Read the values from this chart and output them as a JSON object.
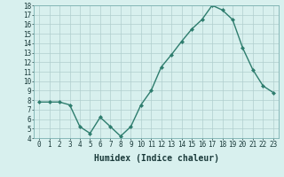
{
  "x": [
    0,
    1,
    2,
    3,
    4,
    5,
    6,
    7,
    8,
    9,
    10,
    11,
    12,
    13,
    14,
    15,
    16,
    17,
    18,
    19,
    20,
    21,
    22,
    23
  ],
  "y": [
    7.8,
    7.8,
    7.8,
    7.5,
    5.2,
    4.5,
    6.2,
    5.2,
    4.2,
    5.2,
    7.5,
    9.0,
    11.5,
    12.8,
    14.2,
    15.5,
    16.5,
    18.0,
    17.5,
    16.5,
    13.5,
    11.2,
    9.5,
    8.8
  ],
  "line_color": "#2e7d6e",
  "marker": "D",
  "marker_size": 2,
  "bg_color": "#d8f0ee",
  "grid_color": "#b0cece",
  "xlabel": "Humidex (Indice chaleur)",
  "xlim": [
    -0.5,
    23.5
  ],
  "ylim": [
    4,
    18
  ],
  "yticks": [
    4,
    5,
    6,
    7,
    8,
    9,
    10,
    11,
    12,
    13,
    14,
    15,
    16,
    17,
    18
  ],
  "xticks": [
    0,
    1,
    2,
    3,
    4,
    5,
    6,
    7,
    8,
    9,
    10,
    11,
    12,
    13,
    14,
    15,
    16,
    17,
    18,
    19,
    20,
    21,
    22,
    23
  ],
  "tick_label_fontsize": 5.5,
  "xlabel_fontsize": 7,
  "linewidth": 1.0
}
